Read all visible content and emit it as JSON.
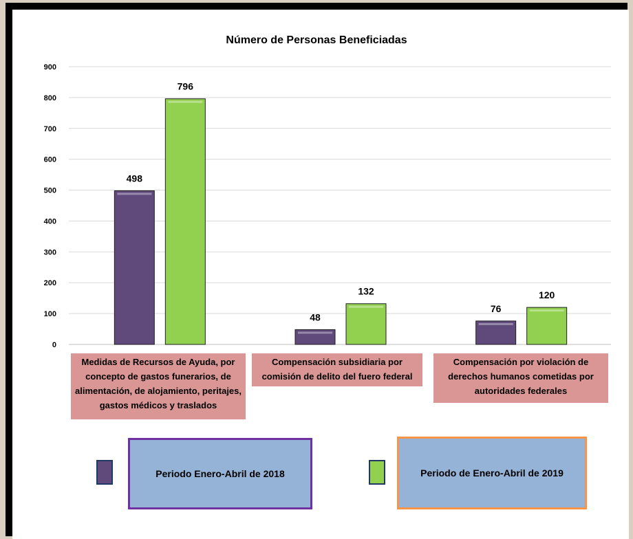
{
  "chart_data": {
    "type": "bar",
    "title": "Número de Personas Beneficiadas",
    "categories": [
      "Medidas de Recursos de Ayuda, por concepto de gastos funerarios, de alimentación, de alojamiento, peritajes, gastos médicos y traslados",
      "Compensación subsidiaria por comisión de delito del fuero federal",
      "Compensación por violación de derechos humanos cometidas por autoridades federales"
    ],
    "series": [
      {
        "name": "Periodo Enero-Abril de 2018",
        "values": [
          498,
          48,
          76
        ],
        "color": "#604a7b"
      },
      {
        "name": "Periodo de Enero-Abril de 2019",
        "values": [
          796,
          132,
          120
        ],
        "color": "#92d050"
      }
    ],
    "ylim": [
      0,
      900
    ],
    "yticks": [
      "0",
      "100",
      "200",
      "300",
      "400",
      "500",
      "600",
      "700",
      "800",
      "900"
    ],
    "grid": true,
    "legend_position": "bottom"
  },
  "colors": {
    "label_background": "#d99694",
    "legend_background": "#95b3d7",
    "legend_border_2018": "#7030a0",
    "legend_border_2019": "#f79646"
  }
}
